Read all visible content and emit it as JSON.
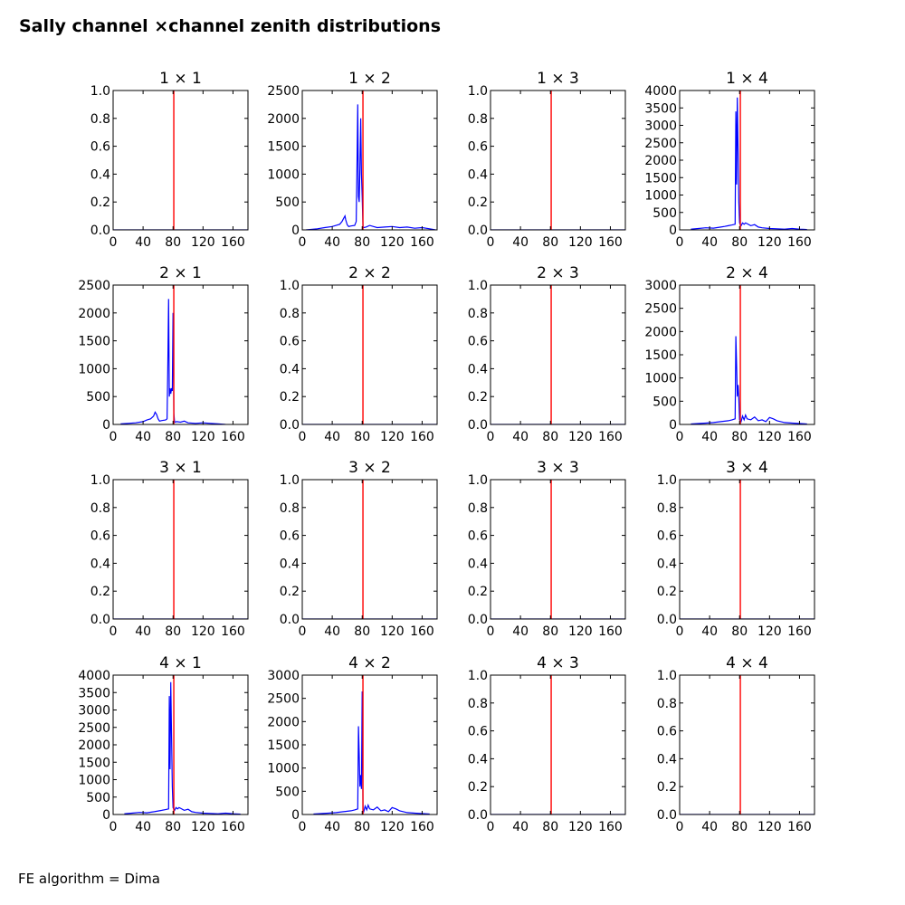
{
  "figure": {
    "title": "Sally channel ×channel zenith distributions",
    "footer": "FE algorithm = Dima"
  },
  "chart_data": [
    {
      "type": "line",
      "title": "1  × 1",
      "xlim": [
        0,
        180
      ],
      "xticks": [
        0,
        40,
        80,
        120,
        160
      ],
      "ylim": [
        0,
        1
      ],
      "yticks": [
        "0.0",
        "0.2",
        "0.4",
        "0.6",
        "0.8",
        "1.0"
      ],
      "series": [
        {
          "color": "#0000ff",
          "x": [
            0,
            180
          ],
          "y": [
            0,
            0
          ]
        }
      ],
      "vline": {
        "x": 81,
        "color": "#ff0000"
      }
    },
    {
      "type": "line",
      "title": "1  × 2",
      "xlim": [
        0,
        180
      ],
      "xticks": [
        0,
        40,
        80,
        120,
        160
      ],
      "ylim": [
        0,
        2500
      ],
      "yticks": [
        "0",
        "500",
        "1000",
        "1500",
        "2000",
        "2500"
      ],
      "series": [
        {
          "color": "#0000ff",
          "x": [
            5,
            20,
            30,
            40,
            45,
            50,
            53,
            55,
            57,
            58,
            60,
            62,
            65,
            70,
            72,
            73,
            74,
            75,
            76,
            77,
            78,
            79,
            80,
            81,
            82,
            85,
            90,
            95,
            100,
            110,
            120,
            130,
            140,
            150,
            160,
            170,
            178
          ],
          "y": [
            0,
            20,
            40,
            60,
            80,
            100,
            150,
            200,
            250,
            180,
            90,
            60,
            70,
            80,
            150,
            1050,
            2250,
            600,
            500,
            1100,
            2000,
            1000,
            600,
            50,
            40,
            50,
            80,
            60,
            40,
            50,
            60,
            40,
            50,
            30,
            40,
            20,
            0
          ]
        }
      ],
      "vline": {
        "x": 81,
        "color": "#ff0000"
      }
    },
    {
      "type": "line",
      "title": "1  × 3",
      "xlim": [
        0,
        180
      ],
      "xticks": [
        0,
        40,
        80,
        120,
        160
      ],
      "ylim": [
        0,
        1
      ],
      "yticks": [
        "0.0",
        "0.2",
        "0.4",
        "0.6",
        "0.8",
        "1.0"
      ],
      "series": [
        {
          "color": "#0000ff",
          "x": [
            0,
            180
          ],
          "y": [
            0,
            0
          ]
        }
      ],
      "vline": {
        "x": 81,
        "color": "#ff0000"
      }
    },
    {
      "type": "line",
      "title": "1  × 4",
      "xlim": [
        0,
        180
      ],
      "xticks": [
        0,
        40,
        80,
        120,
        160
      ],
      "ylim": [
        0,
        4000
      ],
      "yticks": [
        "0",
        "500",
        "1000",
        "1500",
        "2000",
        "2500",
        "3000",
        "3500",
        "4000"
      ],
      "series": [
        {
          "color": "#0000ff",
          "x": [
            15,
            25,
            35,
            45,
            55,
            60,
            65,
            70,
            74,
            75,
            76,
            77,
            78,
            79,
            80,
            81,
            82,
            84,
            86,
            88,
            90,
            95,
            100,
            105,
            110,
            120,
            130,
            140,
            150,
            160,
            170
          ],
          "y": [
            20,
            40,
            60,
            50,
            80,
            100,
            120,
            140,
            160,
            3400,
            1300,
            3800,
            2200,
            800,
            200,
            150,
            120,
            200,
            160,
            200,
            180,
            120,
            150,
            80,
            60,
            40,
            30,
            20,
            40,
            20,
            10
          ]
        }
      ],
      "vline": {
        "x": 81,
        "color": "#ff0000"
      }
    },
    {
      "type": "line",
      "title": "2  × 1",
      "xlim": [
        0,
        180
      ],
      "xticks": [
        0,
        40,
        80,
        120,
        160
      ],
      "ylim": [
        0,
        2500
      ],
      "yticks": [
        "0",
        "500",
        "1000",
        "1500",
        "2000",
        "2500"
      ],
      "series": [
        {
          "color": "#0000ff",
          "x": [
            10,
            20,
            30,
            40,
            45,
            50,
            54,
            56,
            58,
            60,
            62,
            65,
            70,
            72,
            73,
            74,
            75,
            76,
            77,
            78,
            79,
            80,
            81,
            82,
            85,
            90,
            95,
            100,
            110,
            120,
            130,
            140,
            150
          ],
          "y": [
            10,
            20,
            30,
            50,
            80,
            100,
            150,
            220,
            180,
            100,
            60,
            70,
            80,
            100,
            1000,
            2250,
            500,
            650,
            550,
            650,
            600,
            2000,
            200,
            40,
            50,
            40,
            60,
            30,
            20,
            30,
            20,
            10,
            0
          ]
        }
      ],
      "vline": {
        "x": 81,
        "color": "#ff0000"
      }
    },
    {
      "type": "line",
      "title": "2  × 2",
      "xlim": [
        0,
        180
      ],
      "xticks": [
        0,
        40,
        80,
        120,
        160
      ],
      "ylim": [
        0,
        1
      ],
      "yticks": [
        "0.0",
        "0.2",
        "0.4",
        "0.6",
        "0.8",
        "1.0"
      ],
      "series": [
        {
          "color": "#0000ff",
          "x": [
            0,
            180
          ],
          "y": [
            0,
            0
          ]
        }
      ],
      "vline": {
        "x": 81,
        "color": "#ff0000"
      }
    },
    {
      "type": "line",
      "title": "2  × 3",
      "xlim": [
        0,
        180
      ],
      "xticks": [
        0,
        40,
        80,
        120,
        160
      ],
      "ylim": [
        0,
        1
      ],
      "yticks": [
        "0.0",
        "0.2",
        "0.4",
        "0.6",
        "0.8",
        "1.0"
      ],
      "series": [
        {
          "color": "#0000ff",
          "x": [
            0,
            180
          ],
          "y": [
            0,
            0
          ]
        }
      ],
      "vline": {
        "x": 81,
        "color": "#ff0000"
      }
    },
    {
      "type": "line",
      "title": "2  × 4",
      "xlim": [
        0,
        180
      ],
      "xticks": [
        0,
        40,
        80,
        120,
        160
      ],
      "ylim": [
        0,
        3000
      ],
      "yticks": [
        "0",
        "500",
        "1000",
        "1500",
        "2000",
        "2500",
        "3000"
      ],
      "series": [
        {
          "color": "#0000ff",
          "x": [
            15,
            25,
            35,
            45,
            55,
            60,
            65,
            70,
            74,
            75,
            76,
            77,
            78,
            79,
            80,
            81,
            82,
            84,
            86,
            88,
            90,
            95,
            100,
            105,
            110,
            115,
            120,
            125,
            130,
            135,
            140,
            150,
            160,
            170
          ],
          "y": [
            10,
            20,
            30,
            40,
            60,
            70,
            80,
            100,
            120,
            1900,
            1300,
            600,
            850,
            550,
            100,
            80,
            60,
            180,
            100,
            200,
            120,
            100,
            160,
            80,
            100,
            60,
            150,
            120,
            80,
            60,
            40,
            30,
            20,
            10
          ]
        }
      ],
      "vline": {
        "x": 81,
        "color": "#ff0000"
      }
    },
    {
      "type": "line",
      "title": "3  × 1",
      "xlim": [
        0,
        180
      ],
      "xticks": [
        0,
        40,
        80,
        120,
        160
      ],
      "ylim": [
        0,
        1
      ],
      "yticks": [
        "0.0",
        "0.2",
        "0.4",
        "0.6",
        "0.8",
        "1.0"
      ],
      "series": [
        {
          "color": "#0000ff",
          "x": [
            0,
            180
          ],
          "y": [
            0,
            0
          ]
        }
      ],
      "vline": {
        "x": 81,
        "color": "#ff0000"
      }
    },
    {
      "type": "line",
      "title": "3  × 2",
      "xlim": [
        0,
        180
      ],
      "xticks": [
        0,
        40,
        80,
        120,
        160
      ],
      "ylim": [
        0,
        1
      ],
      "yticks": [
        "0.0",
        "0.2",
        "0.4",
        "0.6",
        "0.8",
        "1.0"
      ],
      "series": [
        {
          "color": "#0000ff",
          "x": [
            0,
            180
          ],
          "y": [
            0,
            0
          ]
        }
      ],
      "vline": {
        "x": 81,
        "color": "#ff0000"
      }
    },
    {
      "type": "line",
      "title": "3  × 3",
      "xlim": [
        0,
        180
      ],
      "xticks": [
        0,
        40,
        80,
        120,
        160
      ],
      "ylim": [
        0,
        1
      ],
      "yticks": [
        "0.0",
        "0.2",
        "0.4",
        "0.6",
        "0.8",
        "1.0"
      ],
      "series": [
        {
          "color": "#0000ff",
          "x": [
            0,
            180
          ],
          "y": [
            0,
            0
          ]
        }
      ],
      "vline": {
        "x": 81,
        "color": "#ff0000"
      }
    },
    {
      "type": "line",
      "title": "3  × 4",
      "xlim": [
        0,
        180
      ],
      "xticks": [
        0,
        40,
        80,
        120,
        160
      ],
      "ylim": [
        0,
        1
      ],
      "yticks": [
        "0.0",
        "0.2",
        "0.4",
        "0.6",
        "0.8",
        "1.0"
      ],
      "series": [
        {
          "color": "#0000ff",
          "x": [
            0,
            180
          ],
          "y": [
            0,
            0
          ]
        }
      ],
      "vline": {
        "x": 81,
        "color": "#ff0000"
      }
    },
    {
      "type": "line",
      "title": "4  × 1",
      "xlim": [
        0,
        180
      ],
      "xticks": [
        0,
        40,
        80,
        120,
        160
      ],
      "ylim": [
        0,
        4000
      ],
      "yticks": [
        "0",
        "500",
        "1000",
        "1500",
        "2000",
        "2500",
        "3000",
        "3500",
        "4000"
      ],
      "series": [
        {
          "color": "#0000ff",
          "x": [
            15,
            25,
            35,
            45,
            55,
            60,
            65,
            70,
            74,
            75,
            76,
            77,
            78,
            79,
            80,
            81,
            82,
            84,
            86,
            88,
            90,
            95,
            100,
            105,
            110,
            120,
            130,
            140,
            150,
            160,
            170
          ],
          "y": [
            20,
            40,
            60,
            50,
            80,
            100,
            120,
            140,
            160,
            3400,
            1300,
            3800,
            2200,
            800,
            200,
            150,
            120,
            200,
            160,
            200,
            180,
            120,
            150,
            80,
            60,
            40,
            30,
            20,
            40,
            20,
            10
          ]
        }
      ],
      "vline": {
        "x": 81,
        "color": "#ff0000"
      }
    },
    {
      "type": "line",
      "title": "4  × 2",
      "xlim": [
        0,
        180
      ],
      "xticks": [
        0,
        40,
        80,
        120,
        160
      ],
      "ylim": [
        0,
        3000
      ],
      "yticks": [
        "0",
        "500",
        "1000",
        "1500",
        "2000",
        "2500",
        "3000"
      ],
      "series": [
        {
          "color": "#0000ff",
          "x": [
            15,
            25,
            35,
            45,
            55,
            60,
            65,
            70,
            74,
            75,
            76,
            77,
            78,
            79,
            80,
            81,
            82,
            84,
            86,
            88,
            90,
            95,
            100,
            105,
            110,
            115,
            120,
            125,
            130,
            135,
            140,
            150,
            160,
            170
          ],
          "y": [
            10,
            20,
            30,
            40,
            60,
            70,
            80,
            100,
            120,
            1900,
            1300,
            600,
            850,
            550,
            2650,
            80,
            60,
            180,
            100,
            200,
            120,
            100,
            160,
            80,
            100,
            60,
            150,
            120,
            80,
            60,
            40,
            30,
            20,
            10
          ]
        }
      ],
      "vline": {
        "x": 81,
        "color": "#ff0000"
      }
    },
    {
      "type": "line",
      "title": "4  × 3",
      "xlim": [
        0,
        180
      ],
      "xticks": [
        0,
        40,
        80,
        120,
        160
      ],
      "ylim": [
        0,
        1
      ],
      "yticks": [
        "0.0",
        "0.2",
        "0.4",
        "0.6",
        "0.8",
        "1.0"
      ],
      "series": [
        {
          "color": "#0000ff",
          "x": [
            0,
            180
          ],
          "y": [
            0,
            0
          ]
        }
      ],
      "vline": {
        "x": 81,
        "color": "#ff0000"
      }
    },
    {
      "type": "line",
      "title": "4  × 4",
      "xlim": [
        0,
        180
      ],
      "xticks": [
        0,
        40,
        80,
        120,
        160
      ],
      "ylim": [
        0,
        1
      ],
      "yticks": [
        "0.0",
        "0.2",
        "0.4",
        "0.6",
        "0.8",
        "1.0"
      ],
      "series": [
        {
          "color": "#0000ff",
          "x": [
            0,
            180
          ],
          "y": [
            0,
            0
          ]
        }
      ],
      "vline": {
        "x": 81,
        "color": "#ff0000"
      }
    }
  ]
}
